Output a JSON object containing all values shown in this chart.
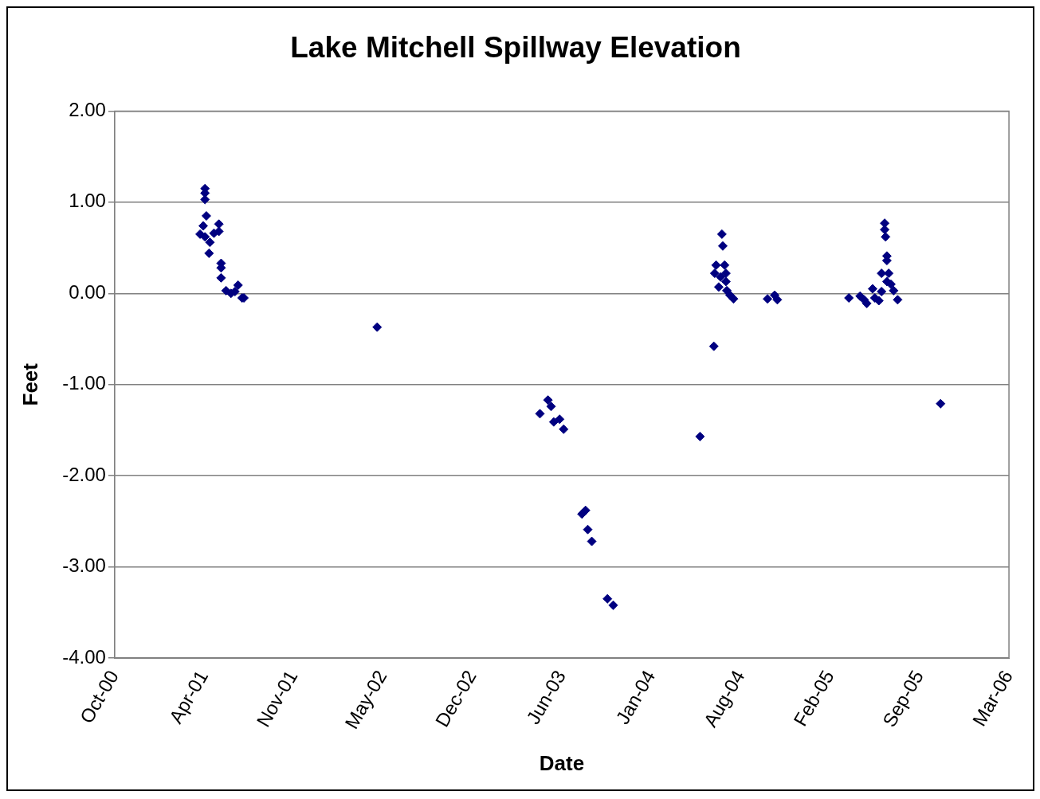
{
  "chart_data": {
    "type": "scatter",
    "title": "Lake Mitchell Spillway Elevation",
    "xlabel": "Date",
    "ylabel": "Feet",
    "marker": "diamond",
    "grid": "y",
    "legend": false,
    "xlim": [
      "2000-10-01",
      "2006-03-24"
    ],
    "xticks": [
      {
        "value": "2000-10-01",
        "label": "Oct-00"
      },
      {
        "value": "2001-04-19",
        "label": "Apr-01"
      },
      {
        "value": "2001-11-05",
        "label": "Nov-01"
      },
      {
        "value": "2002-05-24",
        "label": "May-02"
      },
      {
        "value": "2002-12-10",
        "label": "Dec-02"
      },
      {
        "value": "2003-06-28",
        "label": "Jun-03"
      },
      {
        "value": "2004-01-14",
        "label": "Jan-04"
      },
      {
        "value": "2004-08-01",
        "label": "Aug-04"
      },
      {
        "value": "2005-02-17",
        "label": "Feb-05"
      },
      {
        "value": "2005-09-05",
        "label": "Sep-05"
      },
      {
        "value": "2006-03-24",
        "label": "Mar-06"
      }
    ],
    "ylim": [
      -4,
      2
    ],
    "yticks": [
      {
        "value": -4,
        "label": "-4.00"
      },
      {
        "value": -3,
        "label": "-3.00"
      },
      {
        "value": -2,
        "label": "-2.00"
      },
      {
        "value": -1,
        "label": "-1.00"
      },
      {
        "value": 0,
        "label": "0.00"
      },
      {
        "value": 1,
        "label": "1.00"
      },
      {
        "value": 2,
        "label": "2.00"
      }
    ],
    "series": [
      {
        "color": "#000080",
        "x": [
          "2001-04-21",
          "2001-04-21",
          "2001-04-21",
          "2001-04-24",
          "2001-04-17",
          "2001-05-22",
          "2001-05-22",
          "2001-04-10",
          "2001-04-21",
          "2001-05-02",
          "2001-05-11",
          "2001-04-30",
          "2001-05-27",
          "2001-05-27",
          "2001-05-27",
          "2001-06-07",
          "2001-06-18",
          "2001-07-04",
          "2001-06-27",
          "2001-07-13",
          "2001-07-17",
          "2002-05-11",
          "2003-05-10",
          "2003-05-28",
          "2003-06-04",
          "2003-06-10",
          "2003-06-23",
          "2003-07-02",
          "2003-08-12",
          "2003-08-20",
          "2003-08-25",
          "2003-09-03",
          "2003-10-08",
          "2003-10-21",
          "2004-05-02",
          "2004-06-02",
          "2004-06-20",
          "2004-06-22",
          "2004-06-07",
          "2004-06-26",
          "2004-06-04",
          "2004-06-29",
          "2004-06-17",
          "2004-06-29",
          "2004-06-13",
          "2004-07-01",
          "2004-07-08",
          "2004-07-16",
          "2004-09-30",
          "2004-10-16",
          "2004-10-22",
          "2005-03-31",
          "2005-04-25",
          "2005-05-04",
          "2005-05-10",
          "2005-05-23",
          "2005-05-28",
          "2005-06-06",
          "2005-06-12",
          "2005-06-19",
          "2005-06-19",
          "2005-06-21",
          "2005-06-24",
          "2005-06-24",
          "2005-06-12",
          "2005-06-28",
          "2005-06-24",
          "2005-07-03",
          "2005-07-09",
          "2005-07-18",
          "2005-10-22"
        ],
        "values": [
          1.15,
          1.1,
          1.03,
          0.85,
          0.74,
          0.76,
          0.68,
          0.65,
          0.62,
          0.56,
          0.66,
          0.44,
          0.33,
          0.28,
          0.17,
          0.03,
          0.0,
          0.09,
          0.02,
          -0.05,
          -0.05,
          -0.37,
          -1.32,
          -1.17,
          -1.24,
          -1.41,
          -1.38,
          -1.49,
          -2.42,
          -2.38,
          -2.59,
          -2.72,
          -3.35,
          -3.42,
          -1.57,
          -0.58,
          0.65,
          0.52,
          0.31,
          0.31,
          0.22,
          0.22,
          0.18,
          0.13,
          0.07,
          0.03,
          -0.02,
          -0.06,
          -0.06,
          -0.02,
          -0.07,
          -0.05,
          -0.03,
          -0.07,
          -0.11,
          0.05,
          -0.05,
          -0.08,
          0.02,
          0.77,
          0.7,
          0.62,
          0.41,
          0.36,
          0.22,
          0.22,
          0.13,
          0.1,
          0.03,
          -0.07,
          -1.21
        ]
      }
    ]
  }
}
